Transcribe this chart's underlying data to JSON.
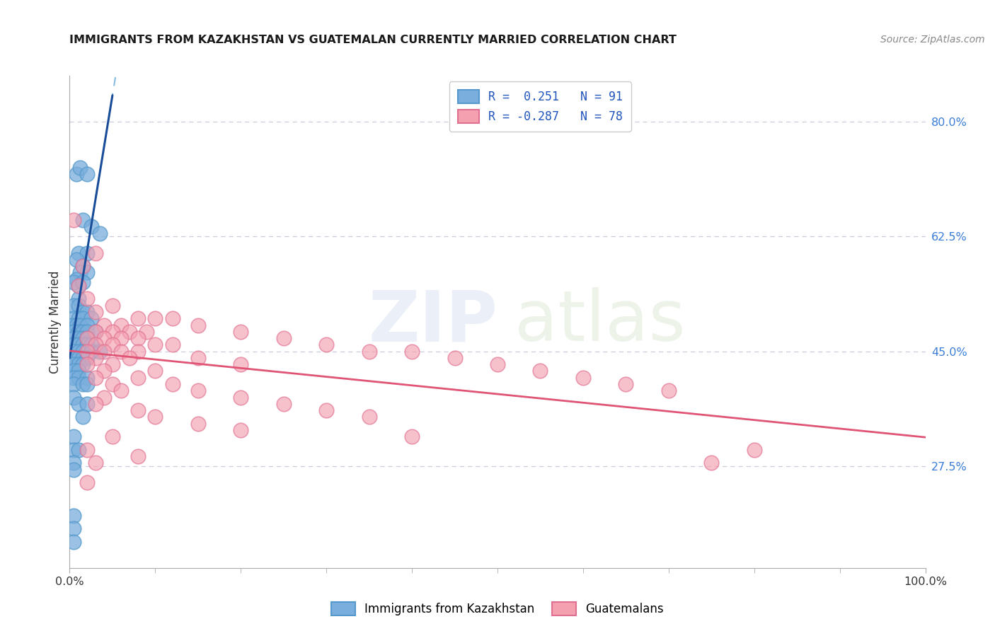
{
  "title": "IMMIGRANTS FROM KAZAKHSTAN VS GUATEMALAN CURRENTLY MARRIED CORRELATION CHART",
  "source_text": "Source: ZipAtlas.com",
  "ylabel": "Currently Married",
  "y_ticks": [
    0.275,
    0.45,
    0.625,
    0.8
  ],
  "y_tick_labels": [
    "27.5%",
    "45.0%",
    "62.5%",
    "80.0%"
  ],
  "x_tick_left": "0.0%",
  "x_tick_right": "100.0%",
  "legend_r1": "R =  0.251",
  "legend_n1": "N = 91",
  "legend_r2": "R = -0.287",
  "legend_n2": "N = 78",
  "blue_color": "#7AAEDC",
  "blue_edge": "#5599CC",
  "pink_color": "#F4A0B0",
  "pink_edge": "#E07090",
  "trend_blue": "#1A4D99",
  "trend_blue_dash": "#88BBDD",
  "trend_pink": "#E05575",
  "grid_color": "#CCCCDD",
  "blue_scatter_x": [
    0.008,
    0.012,
    0.02,
    0.015,
    0.025,
    0.035,
    0.01,
    0.02,
    0.008,
    0.015,
    0.012,
    0.02,
    0.008,
    0.01,
    0.005,
    0.015,
    0.01,
    0.005,
    0.01,
    0.015,
    0.02,
    0.005,
    0.01,
    0.015,
    0.025,
    0.003,
    0.008,
    0.012,
    0.02,
    0.005,
    0.01,
    0.015,
    0.02,
    0.03,
    0.005,
    0.01,
    0.015,
    0.02,
    0.005,
    0.01,
    0.015,
    0.02,
    0.025,
    0.005,
    0.01,
    0.015,
    0.025,
    0.035,
    0.005,
    0.01,
    0.015,
    0.02,
    0.005,
    0.01,
    0.015,
    0.005,
    0.01,
    0.005,
    0.01,
    0.02,
    0.005,
    0.015,
    0.02,
    0.005,
    0.01,
    0.02,
    0.015,
    0.005,
    0.005,
    0.01,
    0.005,
    0.005,
    0.005,
    0.005,
    0.005
  ],
  "blue_scatter_y": [
    0.72,
    0.73,
    0.72,
    0.65,
    0.64,
    0.63,
    0.6,
    0.6,
    0.59,
    0.58,
    0.57,
    0.57,
    0.56,
    0.55,
    0.555,
    0.555,
    0.53,
    0.52,
    0.52,
    0.51,
    0.51,
    0.5,
    0.5,
    0.5,
    0.5,
    0.49,
    0.49,
    0.49,
    0.49,
    0.48,
    0.48,
    0.48,
    0.48,
    0.48,
    0.47,
    0.47,
    0.47,
    0.47,
    0.46,
    0.46,
    0.46,
    0.46,
    0.46,
    0.45,
    0.45,
    0.45,
    0.45,
    0.45,
    0.44,
    0.44,
    0.44,
    0.44,
    0.43,
    0.43,
    0.43,
    0.42,
    0.42,
    0.41,
    0.41,
    0.41,
    0.4,
    0.4,
    0.4,
    0.38,
    0.37,
    0.37,
    0.35,
    0.32,
    0.3,
    0.3,
    0.28,
    0.27,
    0.2,
    0.18,
    0.16
  ],
  "pink_scatter_x": [
    0.02,
    0.05,
    0.03,
    0.08,
    0.1,
    0.12,
    0.04,
    0.06,
    0.15,
    0.03,
    0.05,
    0.07,
    0.09,
    0.2,
    0.02,
    0.04,
    0.06,
    0.08,
    0.25,
    0.03,
    0.05,
    0.1,
    0.12,
    0.3,
    0.02,
    0.04,
    0.06,
    0.08,
    0.35,
    0.4,
    0.03,
    0.07,
    0.15,
    0.45,
    0.02,
    0.05,
    0.2,
    0.5,
    0.04,
    0.1,
    0.55,
    0.03,
    0.08,
    0.6,
    0.05,
    0.12,
    0.65,
    0.06,
    0.15,
    0.7,
    0.04,
    0.2,
    0.03,
    0.25,
    0.08,
    0.3,
    0.1,
    0.35,
    0.15,
    0.2,
    0.05,
    0.4,
    0.02,
    0.08,
    0.03,
    0.75,
    0.005,
    0.03,
    0.015,
    0.01,
    0.02,
    0.8
  ],
  "pink_scatter_y": [
    0.53,
    0.52,
    0.51,
    0.5,
    0.5,
    0.5,
    0.49,
    0.49,
    0.49,
    0.48,
    0.48,
    0.48,
    0.48,
    0.48,
    0.47,
    0.47,
    0.47,
    0.47,
    0.47,
    0.46,
    0.46,
    0.46,
    0.46,
    0.46,
    0.45,
    0.45,
    0.45,
    0.45,
    0.45,
    0.45,
    0.44,
    0.44,
    0.44,
    0.44,
    0.43,
    0.43,
    0.43,
    0.43,
    0.42,
    0.42,
    0.42,
    0.41,
    0.41,
    0.41,
    0.4,
    0.4,
    0.4,
    0.39,
    0.39,
    0.39,
    0.38,
    0.38,
    0.37,
    0.37,
    0.36,
    0.36,
    0.35,
    0.35,
    0.34,
    0.33,
    0.32,
    0.32,
    0.3,
    0.29,
    0.28,
    0.28,
    0.65,
    0.6,
    0.58,
    0.55,
    0.25,
    0.3
  ],
  "blue_trend_x0": 0.0,
  "blue_trend_x1": 0.05,
  "blue_trend_dash_x0": 0.0,
  "blue_trend_dash_x1": 0.12,
  "pink_trend_x0": 0.0,
  "pink_trend_x1": 1.0,
  "xlim": [
    0.0,
    1.0
  ],
  "ylim": [
    0.12,
    0.87
  ]
}
